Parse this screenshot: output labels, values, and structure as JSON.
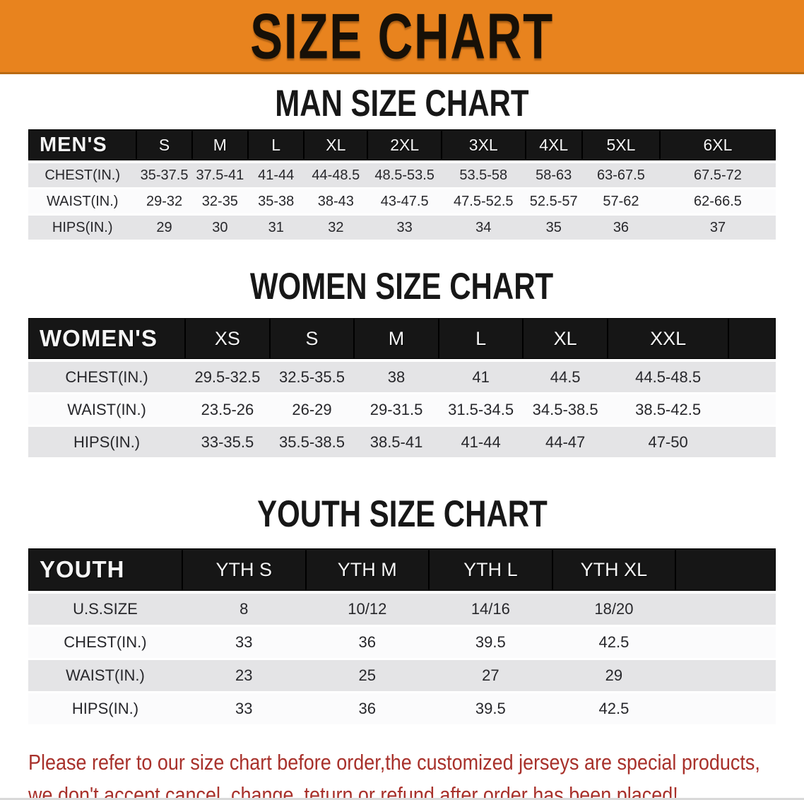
{
  "banner": {
    "title": "SIZE CHART",
    "bg_color": "#E8831E",
    "text_color": "#171007"
  },
  "sections": [
    {
      "heading": "MAN SIZE CHART",
      "table": {
        "header_label": "MEN'S",
        "columns": [
          "S",
          "M",
          "L",
          "XL",
          "2XL",
          "3XL",
          "4XL",
          "5XL",
          "6XL"
        ],
        "rows": [
          {
            "label": "CHEST(IN.)",
            "values": [
              "35-37.5",
              "37.5-41",
              "41-44",
              "44-48.5",
              "48.5-53.5",
              "53.5-58",
              "58-63",
              "63-67.5",
              "67.5-72"
            ]
          },
          {
            "label": "WAIST(IN.)",
            "values": [
              "29-32",
              "32-35",
              "35-38",
              "38-43",
              "43-47.5",
              "47.5-52.5",
              "52.5-57",
              "57-62",
              "62-66.5"
            ]
          },
          {
            "label": "HIPS(IN.)",
            "values": [
              "29",
              "30",
              "31",
              "32",
              "33",
              "34",
              "35",
              "36",
              "37"
            ]
          }
        ]
      }
    },
    {
      "heading": "WOMEN SIZE CHART",
      "table": {
        "header_label": "WOMEN'S",
        "columns": [
          "XS",
          "S",
          "M",
          "L",
          "XL",
          "XXL"
        ],
        "rows": [
          {
            "label": "CHEST(IN.)",
            "values": [
              "29.5-32.5",
              "32.5-35.5",
              "38",
              "41",
              "44.5",
              "44.5-48.5"
            ]
          },
          {
            "label": "WAIST(IN.)",
            "values": [
              "23.5-26",
              "26-29",
              "29-31.5",
              "31.5-34.5",
              "34.5-38.5",
              "38.5-42.5"
            ]
          },
          {
            "label": "HIPS(IN.)",
            "values": [
              "33-35.5",
              "35.5-38.5",
              "38.5-41",
              "41-44",
              "44-47",
              "47-50"
            ]
          }
        ]
      }
    },
    {
      "heading": "YOUTH SIZE CHART",
      "table": {
        "header_label": "YOUTH",
        "columns": [
          "YTH S",
          "YTH M",
          "YTH L",
          "YTH XL"
        ],
        "rows": [
          {
            "label": "U.S.SIZE",
            "values": [
              "8",
              "10/12",
              "14/16",
              "18/20"
            ]
          },
          {
            "label": "CHEST(IN.)",
            "values": [
              "33",
              "36",
              "39.5",
              "42.5"
            ]
          },
          {
            "label": "WAIST(IN.)",
            "values": [
              "23",
              "25",
              "27",
              "29"
            ]
          },
          {
            "label": "HIPS(IN.)",
            "values": [
              "33",
              "36",
              "39.5",
              "42.5"
            ]
          }
        ]
      }
    }
  ],
  "footer_note": {
    "line1": "Please refer to our size chart before order,the customized jerseys are special products,",
    "line2": "we don't accept cancel, change, teturn or refund after order has been placed!",
    "text_color": "#A8312B"
  }
}
